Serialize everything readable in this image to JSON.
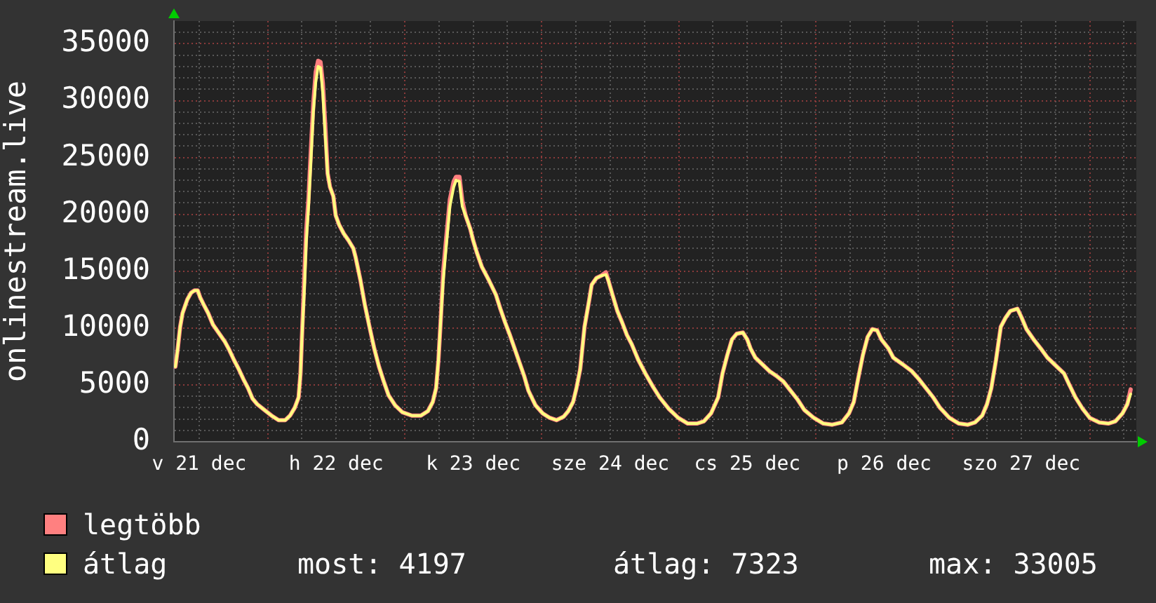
{
  "chart_data": {
    "type": "line",
    "ylabel": "onlinestream.live",
    "x": [
      "--12-21T07:50",
      "--12-21T08:15",
      "--12-21T08:40",
      "--12-21T09:05",
      "--12-21T09:30",
      "--12-21T09:55",
      "--12-21T10:35",
      "--12-21T11:10",
      "--12-21T11:45",
      "--12-21T12:10",
      "--12-21T12:45",
      "--12-21T13:35",
      "--12-21T14:25",
      "--12-21T15:15",
      "--12-21T16:30",
      "--12-21T17:15",
      "--12-21T18:05",
      "--12-21T18:55",
      "--12-21T19:45",
      "--12-21T20:35",
      "--12-21T21:20",
      "--12-21T22:10",
      "--12-21T23:25",
      "--12-22T00:40",
      "--12-22T01:55",
      "--12-22T03:05",
      "--12-22T03:55",
      "--12-22T04:45",
      "--12-22T05:25",
      "--12-22T05:45",
      "--12-22T06:00",
      "--12-22T06:25",
      "--12-22T06:45",
      "--12-22T07:10",
      "--12-22T07:35",
      "--12-22T08:00",
      "--12-22T08:25",
      "--12-22T08:50",
      "--12-22T09:15",
      "--12-22T09:40",
      "--12-22T10:05",
      "--12-22T10:30",
      "--12-22T10:55",
      "--12-22T11:30",
      "--12-22T11:55",
      "--12-22T12:30",
      "--12-22T13:20",
      "--12-22T14:10",
      "--12-22T15:00",
      "--12-22T15:25",
      "--12-22T16:15",
      "--12-22T17:00",
      "--12-22T17:50",
      "--12-22T18:40",
      "--12-22T19:30",
      "--12-22T20:20",
      "--12-22T21:10",
      "--12-22T22:20",
      "--12-22T23:35",
      "--12-23T01:15",
      "--12-23T02:50",
      "--12-23T04:05",
      "--12-23T04:55",
      "--12-23T05:30",
      "--12-23T05:55",
      "--12-23T06:20",
      "--12-23T06:45",
      "--12-23T07:20",
      "--12-23T07:55",
      "--12-23T08:35",
      "--12-23T09:00",
      "--12-23T09:35",
      "--12-23T10:05",
      "--12-23T10:40",
      "--12-23T11:30",
      "--12-23T12:00",
      "--12-23T12:40",
      "--12-23T13:30",
      "--12-23T14:45",
      "--12-23T16:00",
      "--12-23T16:45",
      "--12-23T17:35",
      "--12-23T18:25",
      "--12-23T19:15",
      "--12-23T20:05",
      "--12-23T20:55",
      "--12-23T21:40",
      "--12-23T22:55",
      "--12-24T00:10",
      "--12-24T01:25",
      "--12-24T02:35",
      "--12-24T03:50",
      "--12-24T04:40",
      "--12-24T05:30",
      "--12-24T06:05",
      "--12-24T06:45",
      "--12-24T07:30",
      "--12-24T08:20",
      "--12-24T08:45",
      "--12-24T09:35",
      "--12-24T10:25",
      "--12-24T11:15",
      "--12-24T11:40",
      "--12-24T12:25",
      "--12-24T13:15",
      "--12-24T14:05",
      "--12-24T14:55",
      "--12-24T15:45",
      "--12-24T16:55",
      "--12-24T18:10",
      "--12-24T19:25",
      "--12-24T20:40",
      "--12-24T22:15",
      "--12-24T23:55",
      "--12-25T01:35",
      "--12-25T03:10",
      "--12-25T04:25",
      "--12-25T05:40",
      "--12-25T06:55",
      "--12-25T07:40",
      "--12-25T08:30",
      "--12-25T09:20",
      "--12-25T10:10",
      "--12-25T11:15",
      "--12-25T12:00",
      "--12-25T12:35",
      "--12-25T13:25",
      "--12-25T14:40",
      "--12-25T15:55",
      "--12-25T17:05",
      "--12-25T18:20",
      "--12-25T19:35",
      "--12-25T20:50",
      "--12-25T22:00",
      "--12-25T23:40",
      "--12-26T01:20",
      "--12-26T02:55",
      "--12-26T04:35",
      "--12-26T05:50",
      "--12-26T06:40",
      "--12-26T07:25",
      "--12-26T08:15",
      "--12-26T09:05",
      "--12-26T09:55",
      "--12-26T10:45",
      "--12-26T11:30",
      "--12-26T12:45",
      "--12-26T13:35",
      "--12-26T15:15",
      "--12-26T16:50",
      "--12-26T18:05",
      "--12-26T19:20",
      "--12-26T20:35",
      "--12-26T21:45",
      "--12-26T23:25",
      "--12-27T01:05",
      "--12-27T02:40",
      "--12-27T03:55",
      "--12-27T05:10",
      "--12-27T06:00",
      "--12-27T06:45",
      "--12-27T07:35",
      "--12-27T08:25",
      "--12-27T09:15",
      "--12-27T10:05",
      "--12-27T11:20",
      "--12-27T12:05",
      "--12-27T12:55",
      "--12-27T14:10",
      "--12-27T15:25",
      "--12-27T16:35",
      "--12-27T18:15",
      "--12-27T19:30",
      "--12-27T20:20",
      "--12-27T21:30",
      "--12-27T22:45",
      "--12-28T00:00",
      "--12-28T01:40",
      "--12-28T03:15",
      "--12-28T04:30",
      "--12-28T05:45",
      "--12-28T06:35",
      "--12-28T07:10"
    ],
    "series": [
      {
        "name": "legtöbb",
        "color": "#ff8080",
        "values": [
          6600,
          8200,
          10100,
          11300,
          11900,
          12500,
          13100,
          13300,
          13300,
          12700,
          12100,
          11300,
          10300,
          9700,
          8800,
          8100,
          7200,
          6400,
          5500,
          4700,
          3800,
          3300,
          2800,
          2300,
          1900,
          1900,
          2300,
          3000,
          3900,
          6000,
          9200,
          14500,
          18500,
          21500,
          25800,
          29800,
          32500,
          33500,
          33400,
          31500,
          27800,
          23600,
          22400,
          21600,
          19900,
          19100,
          18300,
          17700,
          17000,
          16200,
          14200,
          12100,
          10100,
          8200,
          6600,
          5300,
          4100,
          3200,
          2600,
          2300,
          2300,
          2700,
          3500,
          4700,
          7200,
          10900,
          15000,
          18200,
          21300,
          22900,
          23300,
          23300,
          21200,
          19900,
          18700,
          17700,
          16600,
          15400,
          14200,
          12900,
          11700,
          10500,
          9400,
          8200,
          7000,
          5800,
          4500,
          3200,
          2500,
          2100,
          1900,
          2200,
          2700,
          3500,
          4700,
          6400,
          10100,
          12500,
          13800,
          14400,
          14600,
          14900,
          14200,
          12900,
          11500,
          10500,
          9400,
          8600,
          7200,
          6000,
          4900,
          3900,
          2900,
          2100,
          1600,
          1600,
          1800,
          2500,
          3900,
          6000,
          7600,
          9000,
          9500,
          9600,
          9000,
          8200,
          7400,
          6800,
          6200,
          5800,
          5300,
          4500,
          3700,
          2800,
          2100,
          1600,
          1500,
          1700,
          2500,
          3500,
          5500,
          7600,
          9200,
          9900,
          9800,
          9000,
          8200,
          7400,
          6800,
          6200,
          5500,
          4700,
          3900,
          3000,
          2100,
          1600,
          1500,
          1700,
          2300,
          3300,
          4700,
          7200,
          10100,
          10900,
          11500,
          11700,
          10900,
          9900,
          9000,
          8200,
          7400,
          6600,
          6000,
          5100,
          3900,
          2900,
          2100,
          1700,
          1600,
          1800,
          2500,
          3300,
          4600
        ]
      },
      {
        "name": "átlag",
        "color": "#ffff80",
        "values": [
          6600,
          8200,
          10100,
          11300,
          11900,
          12500,
          13100,
          13300,
          13300,
          12700,
          12100,
          11300,
          10300,
          9700,
          8800,
          8100,
          7200,
          6400,
          5500,
          4700,
          3800,
          3300,
          2800,
          2300,
          1900,
          1900,
          2300,
          3000,
          3900,
          6000,
          9200,
          13300,
          17500,
          20700,
          24800,
          29000,
          31600,
          33005,
          32900,
          30600,
          26900,
          23600,
          22400,
          21600,
          19900,
          19100,
          18300,
          17700,
          17000,
          16200,
          14200,
          12100,
          10100,
          8200,
          6600,
          5300,
          4100,
          3200,
          2600,
          2300,
          2300,
          2700,
          3500,
          4700,
          7200,
          10900,
          14200,
          17500,
          20700,
          22400,
          23000,
          22900,
          20700,
          19900,
          18700,
          17700,
          16600,
          15400,
          14200,
          12900,
          11700,
          10500,
          9400,
          8200,
          7000,
          5800,
          4500,
          3200,
          2500,
          2100,
          1900,
          2200,
          2700,
          3500,
          4700,
          6400,
          10100,
          12500,
          13800,
          14400,
          14600,
          14700,
          14200,
          12900,
          11500,
          10500,
          9400,
          8600,
          7200,
          6000,
          4900,
          3900,
          2900,
          2100,
          1600,
          1600,
          1800,
          2500,
          3900,
          6000,
          7600,
          9000,
          9500,
          9600,
          9000,
          8200,
          7400,
          6800,
          6200,
          5800,
          5300,
          4500,
          3700,
          2800,
          2100,
          1600,
          1500,
          1700,
          2500,
          3500,
          5500,
          7600,
          9200,
          9900,
          9800,
          9000,
          8200,
          7400,
          6800,
          6200,
          5500,
          4700,
          3900,
          3000,
          2100,
          1600,
          1500,
          1700,
          2300,
          3300,
          4700,
          7200,
          10100,
          10900,
          11500,
          11700,
          10900,
          9900,
          9000,
          8200,
          7400,
          6600,
          6000,
          5100,
          3900,
          2900,
          2100,
          1700,
          1600,
          1800,
          2500,
          3300,
          4197
        ]
      }
    ],
    "xlim": [
      "--12-21T07:35",
      "--12-28T08:10"
    ],
    "xticks": [
      {
        "value": "--12-21T12:00",
        "label": "v 21 dec"
      },
      {
        "value": "--12-21T18:00",
        "label": null
      },
      {
        "value": "--12-22T00:00",
        "label": null
      },
      {
        "value": "--12-22T06:00",
        "label": null
      },
      {
        "value": "--12-22T12:00",
        "label": "h 22 dec"
      },
      {
        "value": "--12-22T18:00",
        "label": null
      },
      {
        "value": "--12-23T00:00",
        "label": null
      },
      {
        "value": "--12-23T06:00",
        "label": null
      },
      {
        "value": "--12-23T12:00",
        "label": "k 23 dec"
      },
      {
        "value": "--12-23T18:00",
        "label": null
      },
      {
        "value": "--12-24T00:00",
        "label": null
      },
      {
        "value": "--12-24T06:00",
        "label": null
      },
      {
        "value": "--12-24T12:00",
        "label": "sze 24 dec"
      },
      {
        "value": "--12-24T18:00",
        "label": null
      },
      {
        "value": "--12-25T00:00",
        "label": null
      },
      {
        "value": "--12-25T06:00",
        "label": null
      },
      {
        "value": "--12-25T12:00",
        "label": "cs 25 dec"
      },
      {
        "value": "--12-25T18:00",
        "label": null
      },
      {
        "value": "--12-26T00:00",
        "label": null
      },
      {
        "value": "--12-26T06:00",
        "label": null
      },
      {
        "value": "--12-26T12:00",
        "label": "p 26 dec"
      },
      {
        "value": "--12-26T18:00",
        "label": null
      },
      {
        "value": "--12-27T00:00",
        "label": null
      },
      {
        "value": "--12-27T06:00",
        "label": null
      },
      {
        "value": "--12-27T12:00",
        "label": "szo 27 dec"
      },
      {
        "value": "--12-27T18:00",
        "label": null
      },
      {
        "value": "--12-28T00:00",
        "label": null
      },
      {
        "value": "--12-28T06:00",
        "label": null
      }
    ],
    "ylim": [
      0,
      37000
    ],
    "yticks": [
      0,
      {
        "value": 1000,
        "label": null
      },
      {
        "value": 2000,
        "label": null
      },
      {
        "value": 3000,
        "label": null
      },
      {
        "value": 4000,
        "label": null
      },
      5000,
      {
        "value": 6000,
        "label": null
      },
      {
        "value": 7000,
        "label": null
      },
      {
        "value": 8000,
        "label": null
      },
      {
        "value": 9000,
        "label": null
      },
      10000,
      {
        "value": 11000,
        "label": null
      },
      {
        "value": 12000,
        "label": null
      },
      {
        "value": 13000,
        "label": null
      },
      {
        "value": 14000,
        "label": null
      },
      15000,
      {
        "value": 16000,
        "label": null
      },
      {
        "value": 17000,
        "label": null
      },
      {
        "value": 18000,
        "label": null
      },
      {
        "value": 19000,
        "label": null
      },
      20000,
      {
        "value": 21000,
        "label": null
      },
      {
        "value": 22000,
        "label": null
      },
      {
        "value": 23000,
        "label": null
      },
      {
        "value": 24000,
        "label": null
      },
      25000,
      {
        "value": 26000,
        "label": null
      },
      {
        "value": 27000,
        "label": null
      },
      {
        "value": 28000,
        "label": null
      },
      {
        "value": 29000,
        "label": null
      },
      30000,
      {
        "value": 31000,
        "label": null
      },
      {
        "value": 32000,
        "label": null
      },
      {
        "value": 33000,
        "label": null
      },
      {
        "value": 34000,
        "label": null
      },
      35000,
      {
        "value": 36000,
        "label": null
      }
    ],
    "grid": true,
    "legend": "bottom",
    "annotations": [
      "most: 4197",
      "átlag: 7323",
      "max: 33005"
    ]
  }
}
